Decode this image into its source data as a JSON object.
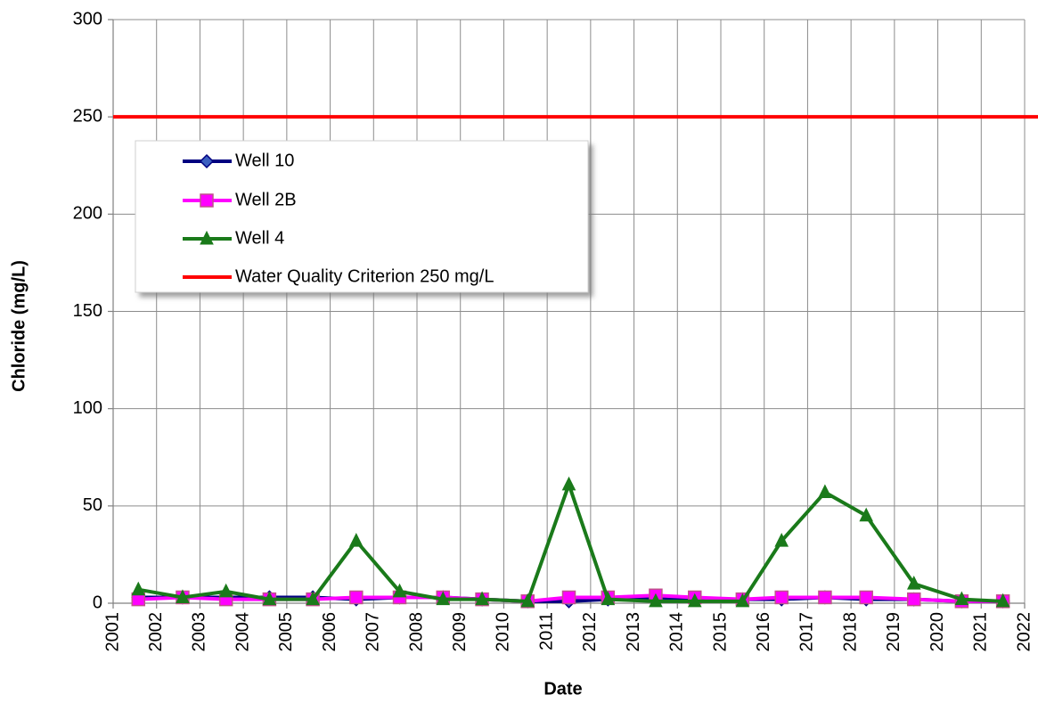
{
  "chart_data": {
    "type": "line",
    "x_label": "Date",
    "y_label": "Chloride (mg/L)",
    "x": [
      2001.58,
      2002.6,
      2003.6,
      2004.6,
      2005.6,
      2006.6,
      2007.6,
      2008.6,
      2009.5,
      2010.55,
      2011.5,
      2012.4,
      2013.5,
      2014.4,
      2015.5,
      2016.4,
      2017.4,
      2018.35,
      2019.45,
      2020.55,
      2021.5
    ],
    "series": [
      {
        "name": "Well 10",
        "color": "#000080",
        "marker": "diamond",
        "values": [
          3,
          3,
          3,
          3,
          3,
          2,
          3,
          3,
          2,
          1,
          1,
          2,
          3,
          2,
          2,
          2,
          3,
          2,
          2,
          1,
          1
        ]
      },
      {
        "name": "Well 2B",
        "color": "#ff00ff",
        "marker": "square",
        "values": [
          2,
          3,
          2,
          2,
          2,
          3,
          3,
          3,
          2,
          1,
          3,
          3,
          4,
          3,
          2,
          3,
          3,
          3,
          2,
          1,
          1
        ]
      },
      {
        "name": "Well 4",
        "color": "#1a7a1a",
        "marker": "triangle",
        "values": [
          7,
          3,
          6,
          2,
          2,
          32,
          6,
          2,
          2,
          1,
          61,
          2,
          1,
          1,
          1,
          32,
          57,
          45,
          10,
          2,
          1
        ]
      }
    ],
    "reference_line": {
      "name": "Water Quality Criterion 250 mg/L",
      "value": 250,
      "color": "#ff0000"
    },
    "xlim": [
      2001,
      2022
    ],
    "xticks": [
      2001,
      2002,
      2003,
      2004,
      2005,
      2006,
      2007,
      2008,
      2009,
      2010,
      2011,
      2012,
      2013,
      2014,
      2015,
      2016,
      2017,
      2018,
      2019,
      2020,
      2021,
      2022
    ],
    "ylim": [
      0,
      300
    ],
    "yticks": [
      0,
      50,
      100,
      150,
      200,
      250,
      300
    ],
    "grid": true,
    "legend_position": "upper left"
  }
}
